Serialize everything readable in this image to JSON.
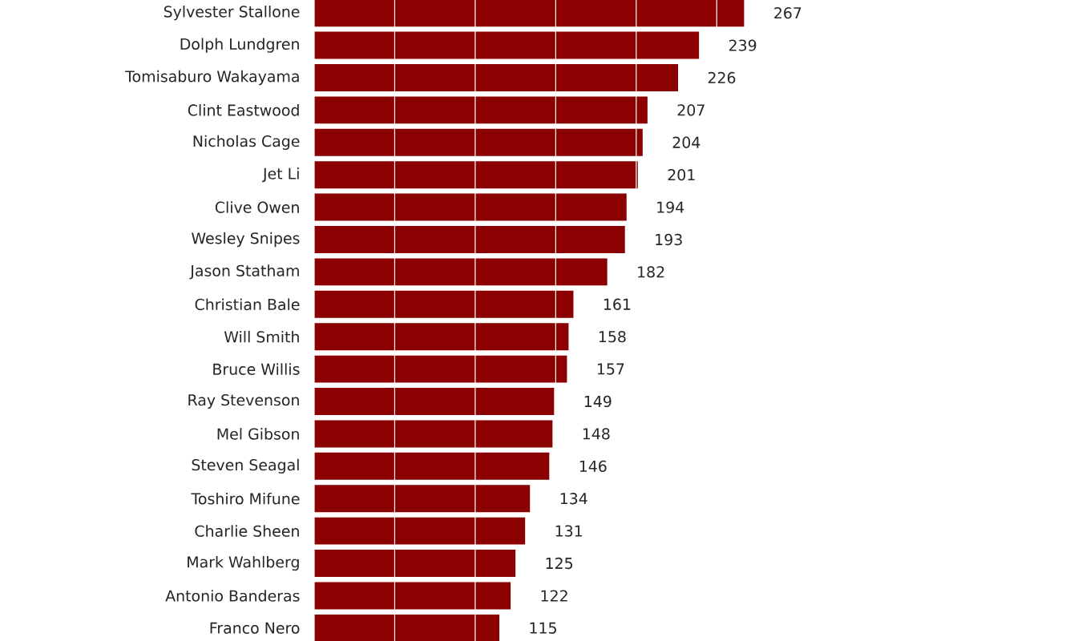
{
  "chart_data": {
    "type": "bar",
    "orientation": "horizontal",
    "color": "#8b0000",
    "categories": [
      "Sylvester Stallone",
      "Dolph Lundgren",
      "Tomisaburo Wakayama",
      "Clint Eastwood",
      "Nicholas Cage",
      "Jet Li",
      "Clive Owen",
      "Wesley Snipes",
      "Jason Statham",
      "Christian Bale",
      "Will Smith",
      "Bruce Willis",
      "Ray Stevenson",
      "Mel Gibson",
      "Steven Seagal",
      "Toshiro Mifune",
      "Charlie Sheen",
      "Mark Wahlberg",
      "Antonio Banderas",
      "Franco Nero"
    ],
    "values": [
      267,
      239,
      226,
      207,
      204,
      201,
      194,
      193,
      182,
      161,
      158,
      157,
      149,
      148,
      146,
      134,
      131,
      125,
      122,
      115
    ],
    "data_labels": true,
    "xticks": [
      {
        "value": 0,
        "label": null
      },
      {
        "value": 50,
        "label": null
      },
      {
        "value": 100,
        "label": null
      },
      {
        "value": 150,
        "label": null
      },
      {
        "value": 200,
        "label": null
      },
      {
        "value": 250,
        "label": null
      },
      {
        "value": 300,
        "label": null
      },
      {
        "value": 350,
        "label": null
      },
      {
        "value": 400,
        "label": null
      },
      {
        "value": 450,
        "label": null
      }
    ],
    "grid": "x",
    "tick_labels": "y"
  }
}
